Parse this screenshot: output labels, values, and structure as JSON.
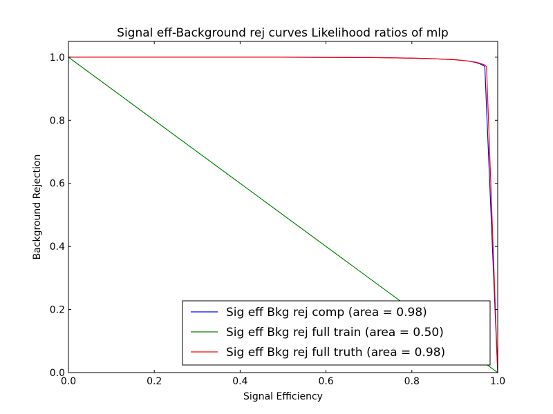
{
  "chart_data": {
    "type": "line",
    "title": "Signal eff-Background rej curves Likelihood ratios of mlp",
    "xlabel": "Signal Efficiency",
    "ylabel": "Background Rejection",
    "xlim": [
      0.0,
      1.0
    ],
    "ylim": [
      0.0,
      1.05
    ],
    "xticks": [
      0.0,
      0.2,
      0.4,
      0.6,
      0.8,
      1.0
    ],
    "yticks": [
      0.0,
      0.2,
      0.4,
      0.6,
      0.8,
      1.0
    ],
    "xtick_labels": [
      "0.0",
      "0.2",
      "0.4",
      "0.6",
      "0.8",
      "1.0"
    ],
    "ytick_labels": [
      "0.0",
      "0.2",
      "0.4",
      "0.6",
      "0.8",
      "1.0"
    ],
    "grid": false,
    "legend_position": "lower-right",
    "series": [
      {
        "name": "Sig eff Bkg rej comp (area = 0.98)",
        "color": "#0000ff",
        "x": [
          0.0,
          0.5,
          0.7,
          0.8,
          0.85,
          0.9,
          0.93,
          0.95,
          0.96,
          0.966,
          0.97,
          1.0
        ],
        "y": [
          1.0,
          1.0,
          0.999,
          0.997,
          0.995,
          0.992,
          0.988,
          0.983,
          0.978,
          0.974,
          0.97,
          0.0
        ]
      },
      {
        "name": "Sig eff Bkg rej full train (area = 0.50)",
        "color": "#008000",
        "x": [
          0.0,
          1.0
        ],
        "y": [
          1.0,
          0.0
        ]
      },
      {
        "name": "Sig eff Bkg rej full truth (area = 0.98)",
        "color": "#ff0000",
        "x": [
          0.0,
          0.5,
          0.7,
          0.8,
          0.85,
          0.9,
          0.93,
          0.95,
          0.96,
          0.97,
          0.974,
          1.0
        ],
        "y": [
          1.0,
          1.0,
          0.999,
          0.997,
          0.995,
          0.992,
          0.988,
          0.984,
          0.98,
          0.975,
          0.97,
          0.0
        ]
      }
    ]
  }
}
